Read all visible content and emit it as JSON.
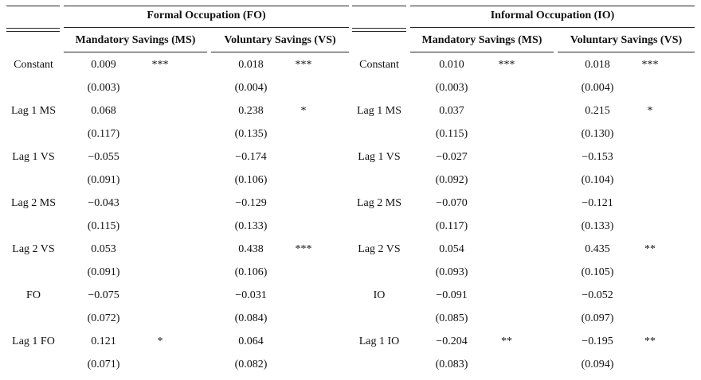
{
  "panels": [
    {
      "title": "Formal Occupation (FO)",
      "columns": [
        "Mandatory Savings (MS)",
        "Voluntary Savings (VS)"
      ],
      "rows": [
        {
          "label": "Constant",
          "cells": [
            {
              "value": "0.009",
              "stars": "***"
            },
            {
              "value": "0.018",
              "stars": "***"
            }
          ],
          "se": [
            "(0.003)",
            "(0.004)"
          ]
        },
        {
          "label": "Lag 1 MS",
          "cells": [
            {
              "value": "0.068"
            },
            {
              "value": "0.238",
              "stars": "*"
            }
          ],
          "se": [
            "(0.117)",
            "(0.135)"
          ]
        },
        {
          "label": "Lag 1 VS",
          "cells": [
            {
              "value": "−0.055"
            },
            {
              "value": "−0.174"
            }
          ],
          "se": [
            "(0.091)",
            "(0.106)"
          ]
        },
        {
          "label": "Lag 2 MS",
          "cells": [
            {
              "value": "−0.043"
            },
            {
              "value": "−0.129"
            }
          ],
          "se": [
            "(0.115)",
            "(0.133)"
          ]
        },
        {
          "label": "Lag 2 VS",
          "cells": [
            {
              "value": "0.053"
            },
            {
              "value": "0.438",
              "stars": "***"
            }
          ],
          "se": [
            "(0.091)",
            "(0.106)"
          ]
        },
        {
          "label": "FO",
          "cells": [
            {
              "value": "−0.075"
            },
            {
              "value": "−0.031"
            }
          ],
          "se": [
            "(0.072)",
            "(0.084)"
          ]
        },
        {
          "label": "Lag 1 FO",
          "cells": [
            {
              "value": "0.121",
              "stars": "*"
            },
            {
              "value": "0.064"
            }
          ],
          "se": [
            "(0.071)",
            "(0.082)"
          ]
        }
      ]
    },
    {
      "title": "Informal Occupation (IO)",
      "columns": [
        "Mandatory Savings (MS)",
        "Voluntary Savings (VS)"
      ],
      "rows": [
        {
          "label": "Constant",
          "cells": [
            {
              "value": "0.010",
              "stars": "***"
            },
            {
              "value": "0.018",
              "stars": "***"
            }
          ],
          "se": [
            "(0.003)",
            "(0.004)"
          ]
        },
        {
          "label": "Lag 1 MS",
          "cells": [
            {
              "value": "0.037"
            },
            {
              "value": "0.215",
              "stars": "*"
            }
          ],
          "se": [
            "(0.115)",
            "(0.130)"
          ]
        },
        {
          "label": "Lag 1 VS",
          "cells": [
            {
              "value": "−0.027"
            },
            {
              "value": "−0.153"
            }
          ],
          "se": [
            "(0.092)",
            "(0.104)"
          ]
        },
        {
          "label": "Lag 2 MS",
          "cells": [
            {
              "value": "−0.070"
            },
            {
              "value": "−0.121"
            }
          ],
          "se": [
            "(0.117)",
            "(0.133)"
          ]
        },
        {
          "label": "Lag 2 VS",
          "cells": [
            {
              "value": "0.054"
            },
            {
              "value": "0.435",
              "stars": "**"
            }
          ],
          "se": [
            "(0.093)",
            "(0.105)"
          ]
        },
        {
          "label": "IO",
          "cells": [
            {
              "value": "−0.091"
            },
            {
              "value": "−0.052"
            }
          ],
          "se": [
            "(0.085)",
            "(0.097)"
          ]
        },
        {
          "label": "Lag 1 IO",
          "cells": [
            {
              "value": "−0.204",
              "stars": "**"
            },
            {
              "value": "−0.195",
              "stars": "**"
            }
          ],
          "se": [
            "(0.083)",
            "(0.094)"
          ]
        }
      ]
    }
  ]
}
